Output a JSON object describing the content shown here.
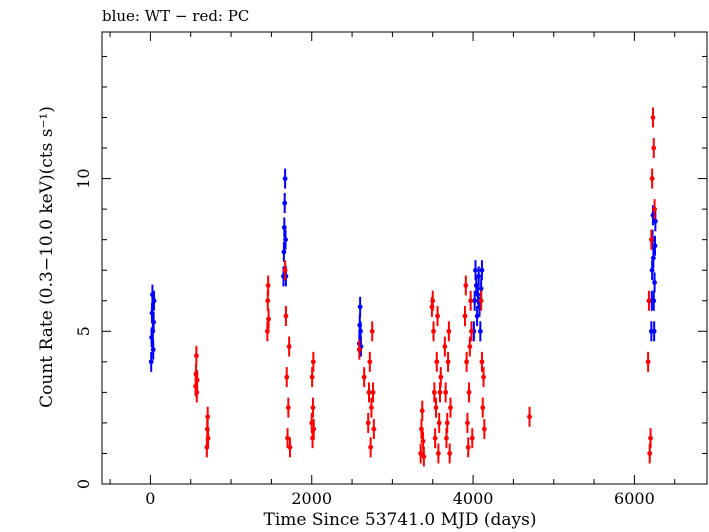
{
  "header": {
    "title": "blue: WT − red: PC"
  },
  "chart_data": {
    "type": "scatter",
    "title": "blue: WT − red: PC",
    "xlabel": "Time Since 53741.0 MJD (days)",
    "ylabel": "Count Rate (0.3−10.0 keV)(cts s⁻¹)",
    "xlim": [
      -600,
      6900
    ],
    "ylim": [
      0,
      14.8
    ],
    "xticks": [
      0,
      2000,
      4000,
      6000
    ],
    "xtick_labels": [
      "0",
      "2000",
      "4000",
      "6000"
    ],
    "yticks": [
      0,
      5,
      10
    ],
    "ytick_labels": [
      "0",
      "5",
      "10"
    ],
    "grid": false,
    "series": [
      {
        "name": "WT",
        "color": "#0000ff",
        "x": [
          10,
          15,
          20,
          25,
          30,
          35,
          40,
          45,
          1650,
          1655,
          1660,
          1665,
          1670,
          1675,
          1680,
          2590,
          2595,
          2600,
          2605,
          2610,
          4010,
          4020,
          4030,
          4040,
          4050,
          4060,
          4070,
          4080,
          4090,
          4100,
          4110,
          6210,
          6215,
          6220,
          6225,
          6230,
          6235,
          6240,
          6245,
          6250,
          6255,
          6260
        ],
        "y": [
          4.0,
          4.8,
          5.6,
          6.2,
          5.0,
          4.4,
          5.3,
          6.0,
          6.8,
          7.6,
          8.4,
          9.2,
          10.0,
          8.0,
          6.8,
          4.6,
          5.2,
          5.8,
          5.0,
          4.5,
          5.0,
          6.0,
          7.0,
          6.5,
          5.5,
          6.2,
          6.8,
          5.8,
          5.0,
          6.4,
          7.0,
          5.0,
          6.0,
          7.0,
          8.0,
          8.8,
          7.4,
          6.0,
          5.0,
          6.6,
          7.8,
          8.6
        ]
      },
      {
        "name": "PC",
        "color": "#ff0000",
        "x": [
          560,
          565,
          570,
          575,
          580,
          700,
          705,
          710,
          715,
          1450,
          1455,
          1460,
          1465,
          1670,
          1680,
          1690,
          1700,
          1710,
          1720,
          1730,
          2000,
          2005,
          2010,
          2015,
          2020,
          2025,
          2590,
          2650,
          2700,
          2710,
          2720,
          2730,
          2740,
          2750,
          2760,
          2770,
          3350,
          3360,
          3370,
          3380,
          3390,
          3490,
          3500,
          3510,
          3520,
          3530,
          3540,
          3550,
          3560,
          3570,
          3580,
          3590,
          3600,
          3650,
          3660,
          3670,
          3680,
          3690,
          3700,
          3710,
          3720,
          3900,
          3910,
          3920,
          3930,
          3940,
          3950,
          3960,
          3970,
          3980,
          3990,
          4100,
          4110,
          4120,
          4130,
          4140,
          4700,
          6170,
          6180,
          6190,
          6200,
          6210,
          6220,
          6230,
          6240,
          6250
        ],
        "y": [
          3.2,
          3.6,
          4.2,
          3.0,
          3.4,
          1.2,
          1.8,
          2.2,
          1.5,
          5.0,
          6.0,
          6.5,
          5.4,
          7.0,
          5.5,
          3.5,
          1.5,
          2.5,
          4.5,
          1.2,
          2.0,
          3.5,
          1.5,
          2.5,
          4.0,
          1.8,
          4.4,
          3.5,
          2.0,
          3.0,
          4.0,
          1.2,
          2.5,
          5.0,
          3.0,
          1.8,
          1.0,
          1.8,
          2.4,
          1.4,
          0.9,
          5.8,
          6.0,
          5.0,
          3.0,
          1.5,
          2.5,
          4.0,
          5.5,
          1.0,
          2.0,
          3.0,
          3.5,
          4.5,
          3.0,
          1.5,
          2.0,
          4.0,
          5.0,
          1.0,
          2.5,
          5.5,
          6.5,
          4.0,
          2.0,
          1.2,
          3.0,
          4.5,
          6.0,
          5.0,
          1.5,
          6.0,
          4.0,
          2.5,
          3.5,
          1.8,
          2.2,
          4.0,
          6.0,
          1.0,
          1.5,
          8.0,
          10.0,
          12.0,
          11.0,
          9.0
        ]
      }
    ]
  }
}
